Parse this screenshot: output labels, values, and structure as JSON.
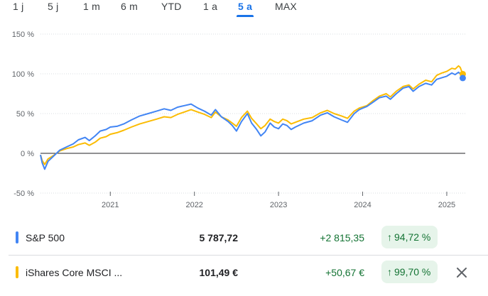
{
  "ranges": [
    "1 j",
    "5 j",
    "1 m",
    "6 m",
    "YTD",
    "1 a",
    "5 a",
    "MAX"
  ],
  "active_range": "5 a",
  "colors": {
    "accent": "#1a73e8",
    "series1": "#4285f4",
    "series2": "#fbbc04",
    "positive": "#137333",
    "positive_bg": "#e6f4ea"
  },
  "chart_data": {
    "type": "line",
    "ylim": [
      -50,
      150
    ],
    "yticks": [
      "150 %",
      "100 %",
      "50 %",
      "0 %",
      "-50 %"
    ],
    "ytick_values": [
      150,
      100,
      50,
      0,
      -50
    ],
    "xtick_labels": [
      "2021",
      "2022",
      "2023",
      "2024",
      "2025"
    ],
    "xtick_values": [
      2021.0,
      2022.0,
      2023.0,
      2024.0,
      2025.0
    ],
    "xlim": [
      2020.17,
      2025.22
    ],
    "baseline": 0,
    "series": [
      {
        "name": "S&P 500",
        "color": "#4285f4",
        "points": [
          [
            2020.17,
            -2
          ],
          [
            2020.19,
            -12
          ],
          [
            2020.22,
            -20
          ],
          [
            2020.26,
            -10
          ],
          [
            2020.32,
            -4
          ],
          [
            2020.4,
            4
          ],
          [
            2020.48,
            8
          ],
          [
            2020.56,
            12
          ],
          [
            2020.62,
            17
          ],
          [
            2020.7,
            20
          ],
          [
            2020.75,
            16
          ],
          [
            2020.82,
            22
          ],
          [
            2020.88,
            28
          ],
          [
            2020.95,
            30
          ],
          [
            2021.0,
            33
          ],
          [
            2021.08,
            34
          ],
          [
            2021.16,
            37
          ],
          [
            2021.25,
            42
          ],
          [
            2021.35,
            47
          ],
          [
            2021.45,
            50
          ],
          [
            2021.55,
            53
          ],
          [
            2021.64,
            56
          ],
          [
            2021.72,
            54
          ],
          [
            2021.8,
            58
          ],
          [
            2021.88,
            60
          ],
          [
            2021.96,
            62
          ],
          [
            2022.04,
            57
          ],
          [
            2022.12,
            53
          ],
          [
            2022.2,
            48
          ],
          [
            2022.25,
            55
          ],
          [
            2022.32,
            46
          ],
          [
            2022.4,
            40
          ],
          [
            2022.45,
            35
          ],
          [
            2022.5,
            28
          ],
          [
            2022.56,
            40
          ],
          [
            2022.63,
            50
          ],
          [
            2022.68,
            38
          ],
          [
            2022.74,
            30
          ],
          [
            2022.79,
            22
          ],
          [
            2022.84,
            27
          ],
          [
            2022.9,
            38
          ],
          [
            2022.95,
            33
          ],
          [
            2023.0,
            31
          ],
          [
            2023.05,
            37
          ],
          [
            2023.1,
            35
          ],
          [
            2023.15,
            30
          ],
          [
            2023.2,
            33
          ],
          [
            2023.3,
            38
          ],
          [
            2023.4,
            41
          ],
          [
            2023.5,
            48
          ],
          [
            2023.58,
            51
          ],
          [
            2023.66,
            46
          ],
          [
            2023.75,
            42
          ],
          [
            2023.82,
            39
          ],
          [
            2023.9,
            50
          ],
          [
            2023.96,
            55
          ],
          [
            2024.05,
            59
          ],
          [
            2024.12,
            64
          ],
          [
            2024.2,
            70
          ],
          [
            2024.28,
            72
          ],
          [
            2024.33,
            68
          ],
          [
            2024.4,
            75
          ],
          [
            2024.48,
            82
          ],
          [
            2024.55,
            84
          ],
          [
            2024.6,
            78
          ],
          [
            2024.67,
            84
          ],
          [
            2024.75,
            88
          ],
          [
            2024.82,
            86
          ],
          [
            2024.88,
            93
          ],
          [
            2024.94,
            95
          ],
          [
            2025.0,
            97
          ],
          [
            2025.06,
            101
          ],
          [
            2025.1,
            99
          ],
          [
            2025.14,
            102
          ],
          [
            2025.16,
            100
          ],
          [
            2025.19,
            94.72
          ]
        ]
      },
      {
        "name": "iShares Core MSCI ...",
        "color": "#fbbc04",
        "points": [
          [
            2020.17,
            -2
          ],
          [
            2020.19,
            -9
          ],
          [
            2020.22,
            -14
          ],
          [
            2020.26,
            -7
          ],
          [
            2020.32,
            -3
          ],
          [
            2020.4,
            3
          ],
          [
            2020.48,
            6
          ],
          [
            2020.56,
            8
          ],
          [
            2020.62,
            11
          ],
          [
            2020.7,
            13
          ],
          [
            2020.75,
            10
          ],
          [
            2020.82,
            14
          ],
          [
            2020.88,
            19
          ],
          [
            2020.95,
            21
          ],
          [
            2021.0,
            24
          ],
          [
            2021.08,
            26
          ],
          [
            2021.16,
            29
          ],
          [
            2021.25,
            33
          ],
          [
            2021.35,
            37
          ],
          [
            2021.45,
            40
          ],
          [
            2021.55,
            43
          ],
          [
            2021.64,
            46
          ],
          [
            2021.72,
            45
          ],
          [
            2021.8,
            49
          ],
          [
            2021.88,
            52
          ],
          [
            2021.96,
            55
          ],
          [
            2022.04,
            52
          ],
          [
            2022.12,
            49
          ],
          [
            2022.2,
            45
          ],
          [
            2022.25,
            52
          ],
          [
            2022.32,
            46
          ],
          [
            2022.4,
            42
          ],
          [
            2022.45,
            38
          ],
          [
            2022.5,
            34
          ],
          [
            2022.56,
            45
          ],
          [
            2022.63,
            53
          ],
          [
            2022.68,
            44
          ],
          [
            2022.74,
            37
          ],
          [
            2022.79,
            31
          ],
          [
            2022.84,
            35
          ],
          [
            2022.9,
            43
          ],
          [
            2022.95,
            40
          ],
          [
            2023.0,
            38
          ],
          [
            2023.05,
            43
          ],
          [
            2023.1,
            41
          ],
          [
            2023.15,
            37
          ],
          [
            2023.2,
            39
          ],
          [
            2023.3,
            43
          ],
          [
            2023.4,
            45
          ],
          [
            2023.5,
            51
          ],
          [
            2023.58,
            54
          ],
          [
            2023.66,
            50
          ],
          [
            2023.75,
            47
          ],
          [
            2023.82,
            44
          ],
          [
            2023.9,
            53
          ],
          [
            2023.96,
            57
          ],
          [
            2024.05,
            60
          ],
          [
            2024.12,
            66
          ],
          [
            2024.2,
            72
          ],
          [
            2024.28,
            75
          ],
          [
            2024.33,
            71
          ],
          [
            2024.4,
            78
          ],
          [
            2024.48,
            84
          ],
          [
            2024.55,
            86
          ],
          [
            2024.6,
            81
          ],
          [
            2024.67,
            87
          ],
          [
            2024.75,
            92
          ],
          [
            2024.82,
            90
          ],
          [
            2024.88,
            98
          ],
          [
            2024.94,
            101
          ],
          [
            2025.0,
            103
          ],
          [
            2025.06,
            107
          ],
          [
            2025.1,
            106
          ],
          [
            2025.14,
            110
          ],
          [
            2025.16,
            108
          ],
          [
            2025.19,
            99.7
          ]
        ]
      }
    ]
  },
  "rows": [
    {
      "name": "S&P 500",
      "price": "5 787,72",
      "change": "+2 815,35",
      "pct": "94,72 %",
      "arrow": "↑",
      "color": "#4285f4"
    },
    {
      "name": "iShares Core MSCI ...",
      "price": "101,49 €",
      "change": "+50,67 €",
      "pct": "99,70 %",
      "arrow": "↑",
      "color": "#fbbc04",
      "close_icon": "close-icon"
    }
  ]
}
